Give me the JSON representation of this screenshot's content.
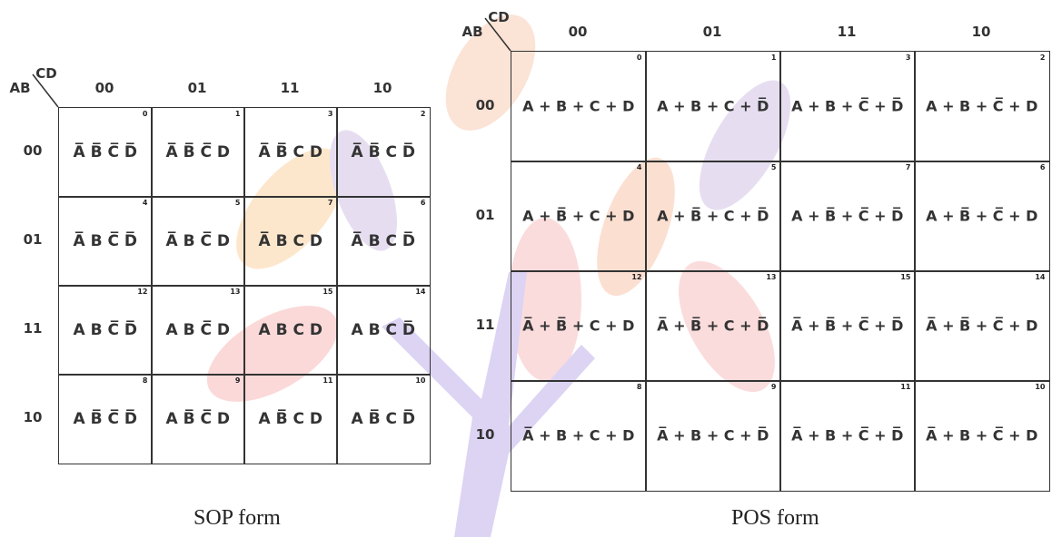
{
  "sop": {
    "corner_row": "AB",
    "corner_col": "CD",
    "col_headers": [
      "00",
      "01",
      "11",
      "10"
    ],
    "row_headers": [
      "00",
      "01",
      "11",
      "10"
    ],
    "cells": [
      [
        {
          "index": 0,
          "term": "A̅ B̅ C̅ D̅"
        },
        {
          "index": 1,
          "term": "A̅ B̅ C̅ D"
        },
        {
          "index": 3,
          "term": "A̅ B̅ C D"
        },
        {
          "index": 2,
          "term": "A̅ B̅ C D̅"
        }
      ],
      [
        {
          "index": 4,
          "term": "A̅ B C̅ D̅"
        },
        {
          "index": 5,
          "term": "A̅ B C̅ D"
        },
        {
          "index": 7,
          "term": "A̅ B C D"
        },
        {
          "index": 6,
          "term": "A̅ B C D̅"
        }
      ],
      [
        {
          "index": 12,
          "term": "A B C̅ D̅"
        },
        {
          "index": 13,
          "term": "A B C̅ D"
        },
        {
          "index": 15,
          "term": "A B C D"
        },
        {
          "index": 14,
          "term": "A B C D̅"
        }
      ],
      [
        {
          "index": 8,
          "term": "A B̅ C̅ D̅"
        },
        {
          "index": 9,
          "term": "A B̅ C̅ D"
        },
        {
          "index": 11,
          "term": "A B̅ C D"
        },
        {
          "index": 10,
          "term": "A B̅ C D̅"
        }
      ]
    ],
    "caption": "SOP form"
  },
  "pos": {
    "corner_row": "AB",
    "corner_col": "CD",
    "col_headers": [
      "00",
      "01",
      "11",
      "10"
    ],
    "row_headers": [
      "00",
      "01",
      "11",
      "10"
    ],
    "cells": [
      [
        {
          "index": 0,
          "term": "A + B + C + D"
        },
        {
          "index": 1,
          "term": "A + B + C + D̅"
        },
        {
          "index": 3,
          "term": "A + B + C̅ + D̅"
        },
        {
          "index": 2,
          "term": "A + B + C̅ + D"
        }
      ],
      [
        {
          "index": 4,
          "term": "A + B̅ + C + D"
        },
        {
          "index": 5,
          "term": "A + B̅ + C + D̅"
        },
        {
          "index": 7,
          "term": "A + B̅ + C̅ + D̅"
        },
        {
          "index": 6,
          "term": "A + B̅ + C̅ + D"
        }
      ],
      [
        {
          "index": 12,
          "term": "A̅ + B̅ + C + D"
        },
        {
          "index": 13,
          "term": "A̅ + B̅ + C + D̅"
        },
        {
          "index": 15,
          "term": "A̅ + B̅ + C̅ + D̅"
        },
        {
          "index": 14,
          "term": "A̅ + B̅ + C̅ + D"
        }
      ],
      [
        {
          "index": 8,
          "term": "A̅ + B + C + D"
        },
        {
          "index": 9,
          "term": "A̅ + B + C + D̅"
        },
        {
          "index": 11,
          "term": "A̅ + B + C̅ + D̅"
        },
        {
          "index": 10,
          "term": "A̅ + B + C̅ + D"
        }
      ]
    ],
    "caption": "POS form"
  }
}
